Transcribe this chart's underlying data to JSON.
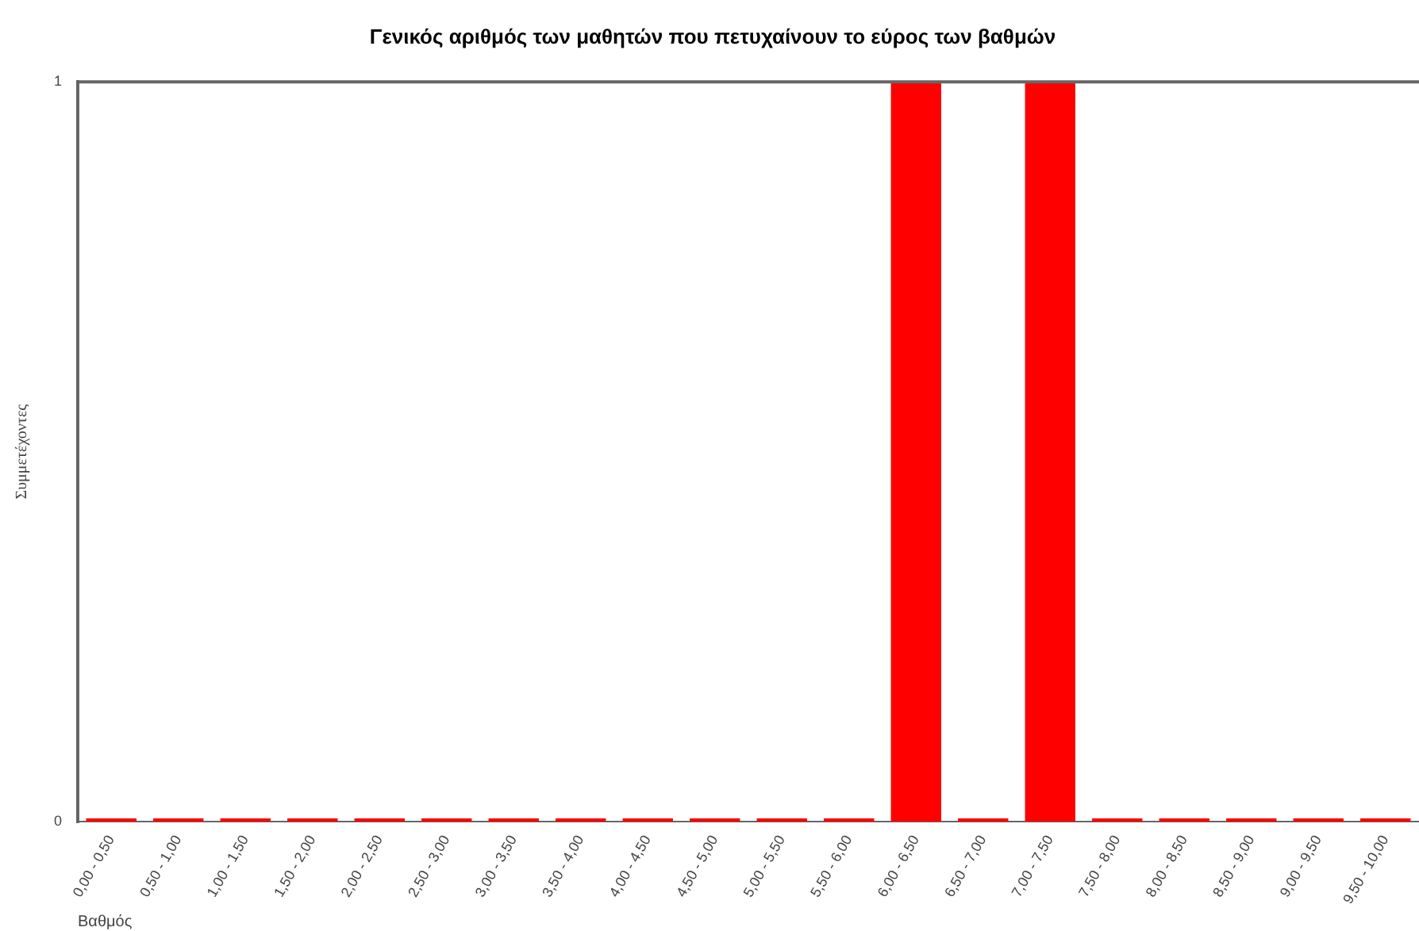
{
  "chart_data": {
    "type": "bar",
    "title": "Γενικός αριθμός των μαθητών που πετυχαίνουν το εύρος των βαθμών",
    "xlabel": "Βαθμός",
    "ylabel": "Συμμετέχοντες",
    "categories": [
      "0,00 - 0,50",
      "0,50 - 1,00",
      "1,00 - 1,50",
      "1,50 - 2,00",
      "2,00 - 2,50",
      "2,50 - 3,00",
      "3,00 - 3,50",
      "3,50 - 4,00",
      "4,00 - 4,50",
      "4,50 - 5,00",
      "5,00 - 5,50",
      "5,50 - 6,00",
      "6,00 - 6,50",
      "6,50 - 7,00",
      "7,00 - 7,50",
      "7,50 - 8,00",
      "8,00 - 8,50",
      "8,50 - 9,00",
      "9,00 - 9,50",
      "9,50 - 10,00"
    ],
    "values": [
      0,
      0,
      0,
      0,
      0,
      0,
      0,
      0,
      0,
      0,
      0,
      0,
      1,
      0,
      1,
      0,
      0,
      0,
      0,
      0
    ],
    "color": "#ff0000",
    "ylim": [
      0,
      1
    ],
    "yticks": [
      0,
      1
    ],
    "legend": false
  }
}
